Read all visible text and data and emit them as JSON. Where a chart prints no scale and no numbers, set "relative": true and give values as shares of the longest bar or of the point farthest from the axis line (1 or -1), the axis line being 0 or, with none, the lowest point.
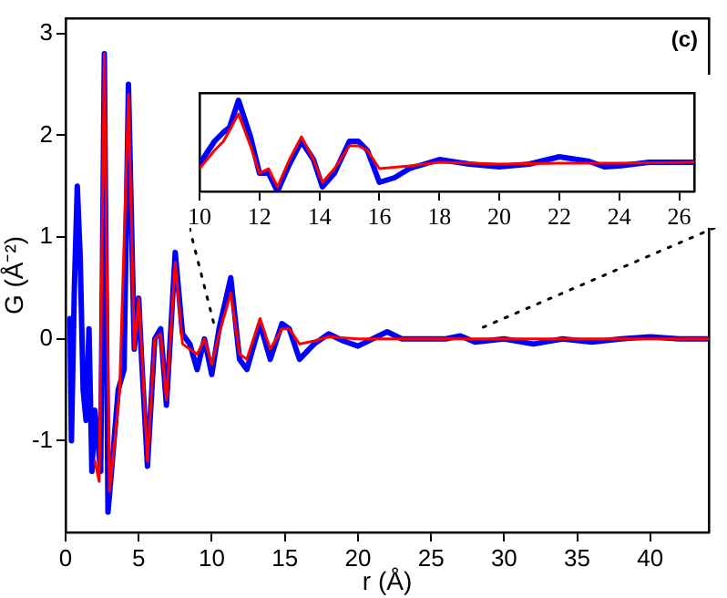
{
  "chart_data": [
    {
      "type": "line",
      "xlabel": "r (Å)",
      "ylabel": "G (Å⁻²)",
      "annotations": [
        "(c)"
      ],
      "xlim": [
        0,
        44
      ],
      "ylim": [
        -1.9,
        3.15
      ],
      "xticks": [
        0,
        5,
        10,
        15,
        20,
        25,
        30,
        35,
        40
      ],
      "yticks": [
        -1,
        0,
        1,
        2,
        3
      ],
      "grid": false,
      "legend": false,
      "marker": "none",
      "line_style": "solid",
      "series": [
        {
          "color": "#0000ff",
          "x": [
            0.3,
            0.4,
            0.6,
            0.8,
            1.0,
            1.2,
            1.4,
            1.6,
            1.8,
            2.0,
            2.2,
            2.4,
            2.65,
            2.9,
            3.2,
            3.6,
            4.0,
            4.3,
            4.7,
            5.0,
            5.2,
            5.6,
            6.1,
            6.5,
            6.9,
            7.5,
            8.0,
            8.5,
            9.0,
            9.5,
            10.0,
            10.5,
            11.3,
            11.9,
            12.4,
            13.3,
            14.0,
            14.8,
            15.3,
            16.0,
            17,
            18,
            19,
            20,
            21,
            22,
            23,
            24,
            26,
            27,
            28,
            30,
            32,
            34,
            36,
            38,
            40,
            42,
            44
          ],
          "values": [
            0.2,
            -1.0,
            0.5,
            1.5,
            0.8,
            -0.5,
            -0.8,
            0.1,
            -1.3,
            -0.7,
            -1.0,
            -1.3,
            2.8,
            -1.7,
            -1.2,
            -0.5,
            -0.3,
            2.5,
            -0.1,
            0.4,
            -0.2,
            -1.25,
            0.0,
            0.1,
            -0.65,
            0.85,
            0.05,
            -0.05,
            -0.3,
            0.0,
            -0.35,
            0.1,
            0.6,
            -0.2,
            -0.3,
            0.15,
            -0.2,
            0.15,
            0.1,
            -0.2,
            -0.05,
            0.05,
            -0.02,
            -0.07,
            0.0,
            0.07,
            0.0,
            0.0,
            0.0,
            0.03,
            -0.03,
            0.0,
            -0.05,
            0.0,
            -0.03,
            0.0,
            0.02,
            0.0,
            0.0
          ]
        },
        {
          "color": "#ff0000",
          "x": [
            2.0,
            2.3,
            2.65,
            3.0,
            3.3,
            3.7,
            4.3,
            4.7,
            5.0,
            5.2,
            5.6,
            6.1,
            6.5,
            6.9,
            7.5,
            8.0,
            8.5,
            9.0,
            9.5,
            10.0,
            10.5,
            11.3,
            11.9,
            12.4,
            13.3,
            14.0,
            14.8,
            15.3,
            16,
            17,
            18,
            20,
            25,
            30,
            35,
            40,
            44
          ],
          "values": [
            -1.2,
            -1.4,
            2.8,
            -1.5,
            -1.1,
            -0.5,
            2.4,
            -0.1,
            0.4,
            -0.1,
            -1.2,
            0.0,
            0.05,
            -0.6,
            0.75,
            -0.05,
            -0.1,
            -0.15,
            0.0,
            -0.25,
            0.05,
            0.45,
            -0.15,
            -0.2,
            0.2,
            -0.1,
            0.1,
            0.1,
            -0.05,
            -0.02,
            0.02,
            0.0,
            0.0,
            0.0,
            0.0,
            0.0,
            0.0
          ]
        }
      ]
    },
    {
      "type": "line",
      "relative": true,
      "tick_labels": "x",
      "xlim": [
        10,
        26.5
      ],
      "xticks": [
        10,
        12,
        14,
        16,
        18,
        20,
        22,
        24,
        26
      ],
      "grid": false,
      "legend": false,
      "marker": "none",
      "line_style": "solid",
      "series": [
        {
          "color": "#0000ff",
          "x": [
            10.0,
            10.5,
            10.8,
            11.0,
            11.3,
            11.7,
            12.0,
            12.3,
            12.6,
            13.0,
            13.4,
            13.8,
            14.1,
            14.5,
            15.0,
            15.3,
            15.6,
            16.0,
            16.5,
            17.0,
            17.5,
            18.0,
            19,
            20,
            21,
            22,
            23,
            23.5,
            24,
            25,
            26,
            26.5
          ],
          "values": [
            0.3,
            0.55,
            0.65,
            0.7,
            1.0,
            0.6,
            0.2,
            0.2,
            0.0,
            0.3,
            0.55,
            0.35,
            0.05,
            0.2,
            0.55,
            0.55,
            0.45,
            0.1,
            0.15,
            0.25,
            0.3,
            0.35,
            0.3,
            0.27,
            0.3,
            0.38,
            0.33,
            0.27,
            0.28,
            0.32,
            0.32,
            0.32
          ]
        },
        {
          "color": "#ff0000",
          "x": [
            10.0,
            10.5,
            10.8,
            11.3,
            11.7,
            12.0,
            12.3,
            12.6,
            13.0,
            13.4,
            13.8,
            14.1,
            14.5,
            15.0,
            15.3,
            15.6,
            16.0,
            17,
            18,
            20,
            22,
            24,
            26.5
          ],
          "values": [
            0.25,
            0.45,
            0.55,
            0.85,
            0.5,
            0.2,
            0.25,
            0.05,
            0.35,
            0.6,
            0.35,
            0.1,
            0.25,
            0.5,
            0.5,
            0.45,
            0.25,
            0.28,
            0.32,
            0.3,
            0.31,
            0.31,
            0.32
          ]
        }
      ]
    }
  ]
}
